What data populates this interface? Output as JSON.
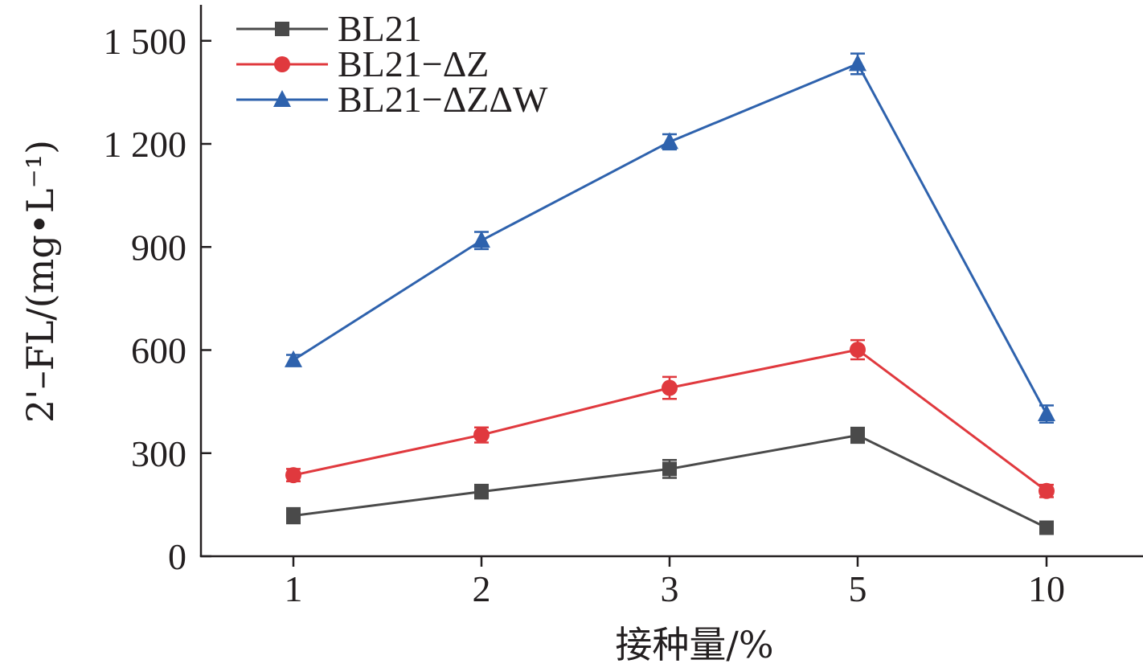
{
  "chart_data": {
    "type": "line",
    "xlabel": "接种量/%",
    "ylabel": "2'–FL/(mg•L⁻¹)",
    "categories": [
      "1",
      "2",
      "3",
      "5",
      "10"
    ],
    "ylim": [
      0,
      1600
    ],
    "yticks": [
      {
        "value": 0,
        "label": "0"
      },
      {
        "value": 300,
        "label": "300"
      },
      {
        "value": 600,
        "label": "600"
      },
      {
        "value": 900,
        "label": "900"
      },
      {
        "value": 1200,
        "label": "1 200"
      },
      {
        "value": 1500,
        "label": "1 500"
      }
    ],
    "legend_position": "top-left",
    "grid": false,
    "series": [
      {
        "name": "BL21",
        "marker": "square",
        "color": "#4a4a4a",
        "values": [
          118,
          188,
          254,
          352,
          83
        ],
        "errors": [
          22,
          20,
          26,
          22,
          18
        ]
      },
      {
        "name": "BL21−ΔZ",
        "marker": "circle",
        "color": "#e0393e",
        "values": [
          236,
          353,
          490,
          601,
          190
        ],
        "errors": [
          18,
          22,
          32,
          28,
          18
        ]
      },
      {
        "name": "BL21−ΔZΔW",
        "marker": "triangle",
        "color": "#2e62ad",
        "values": [
          571,
          919,
          1206,
          1433,
          414
        ],
        "errors": [
          15,
          25,
          22,
          30,
          25
        ]
      }
    ]
  }
}
